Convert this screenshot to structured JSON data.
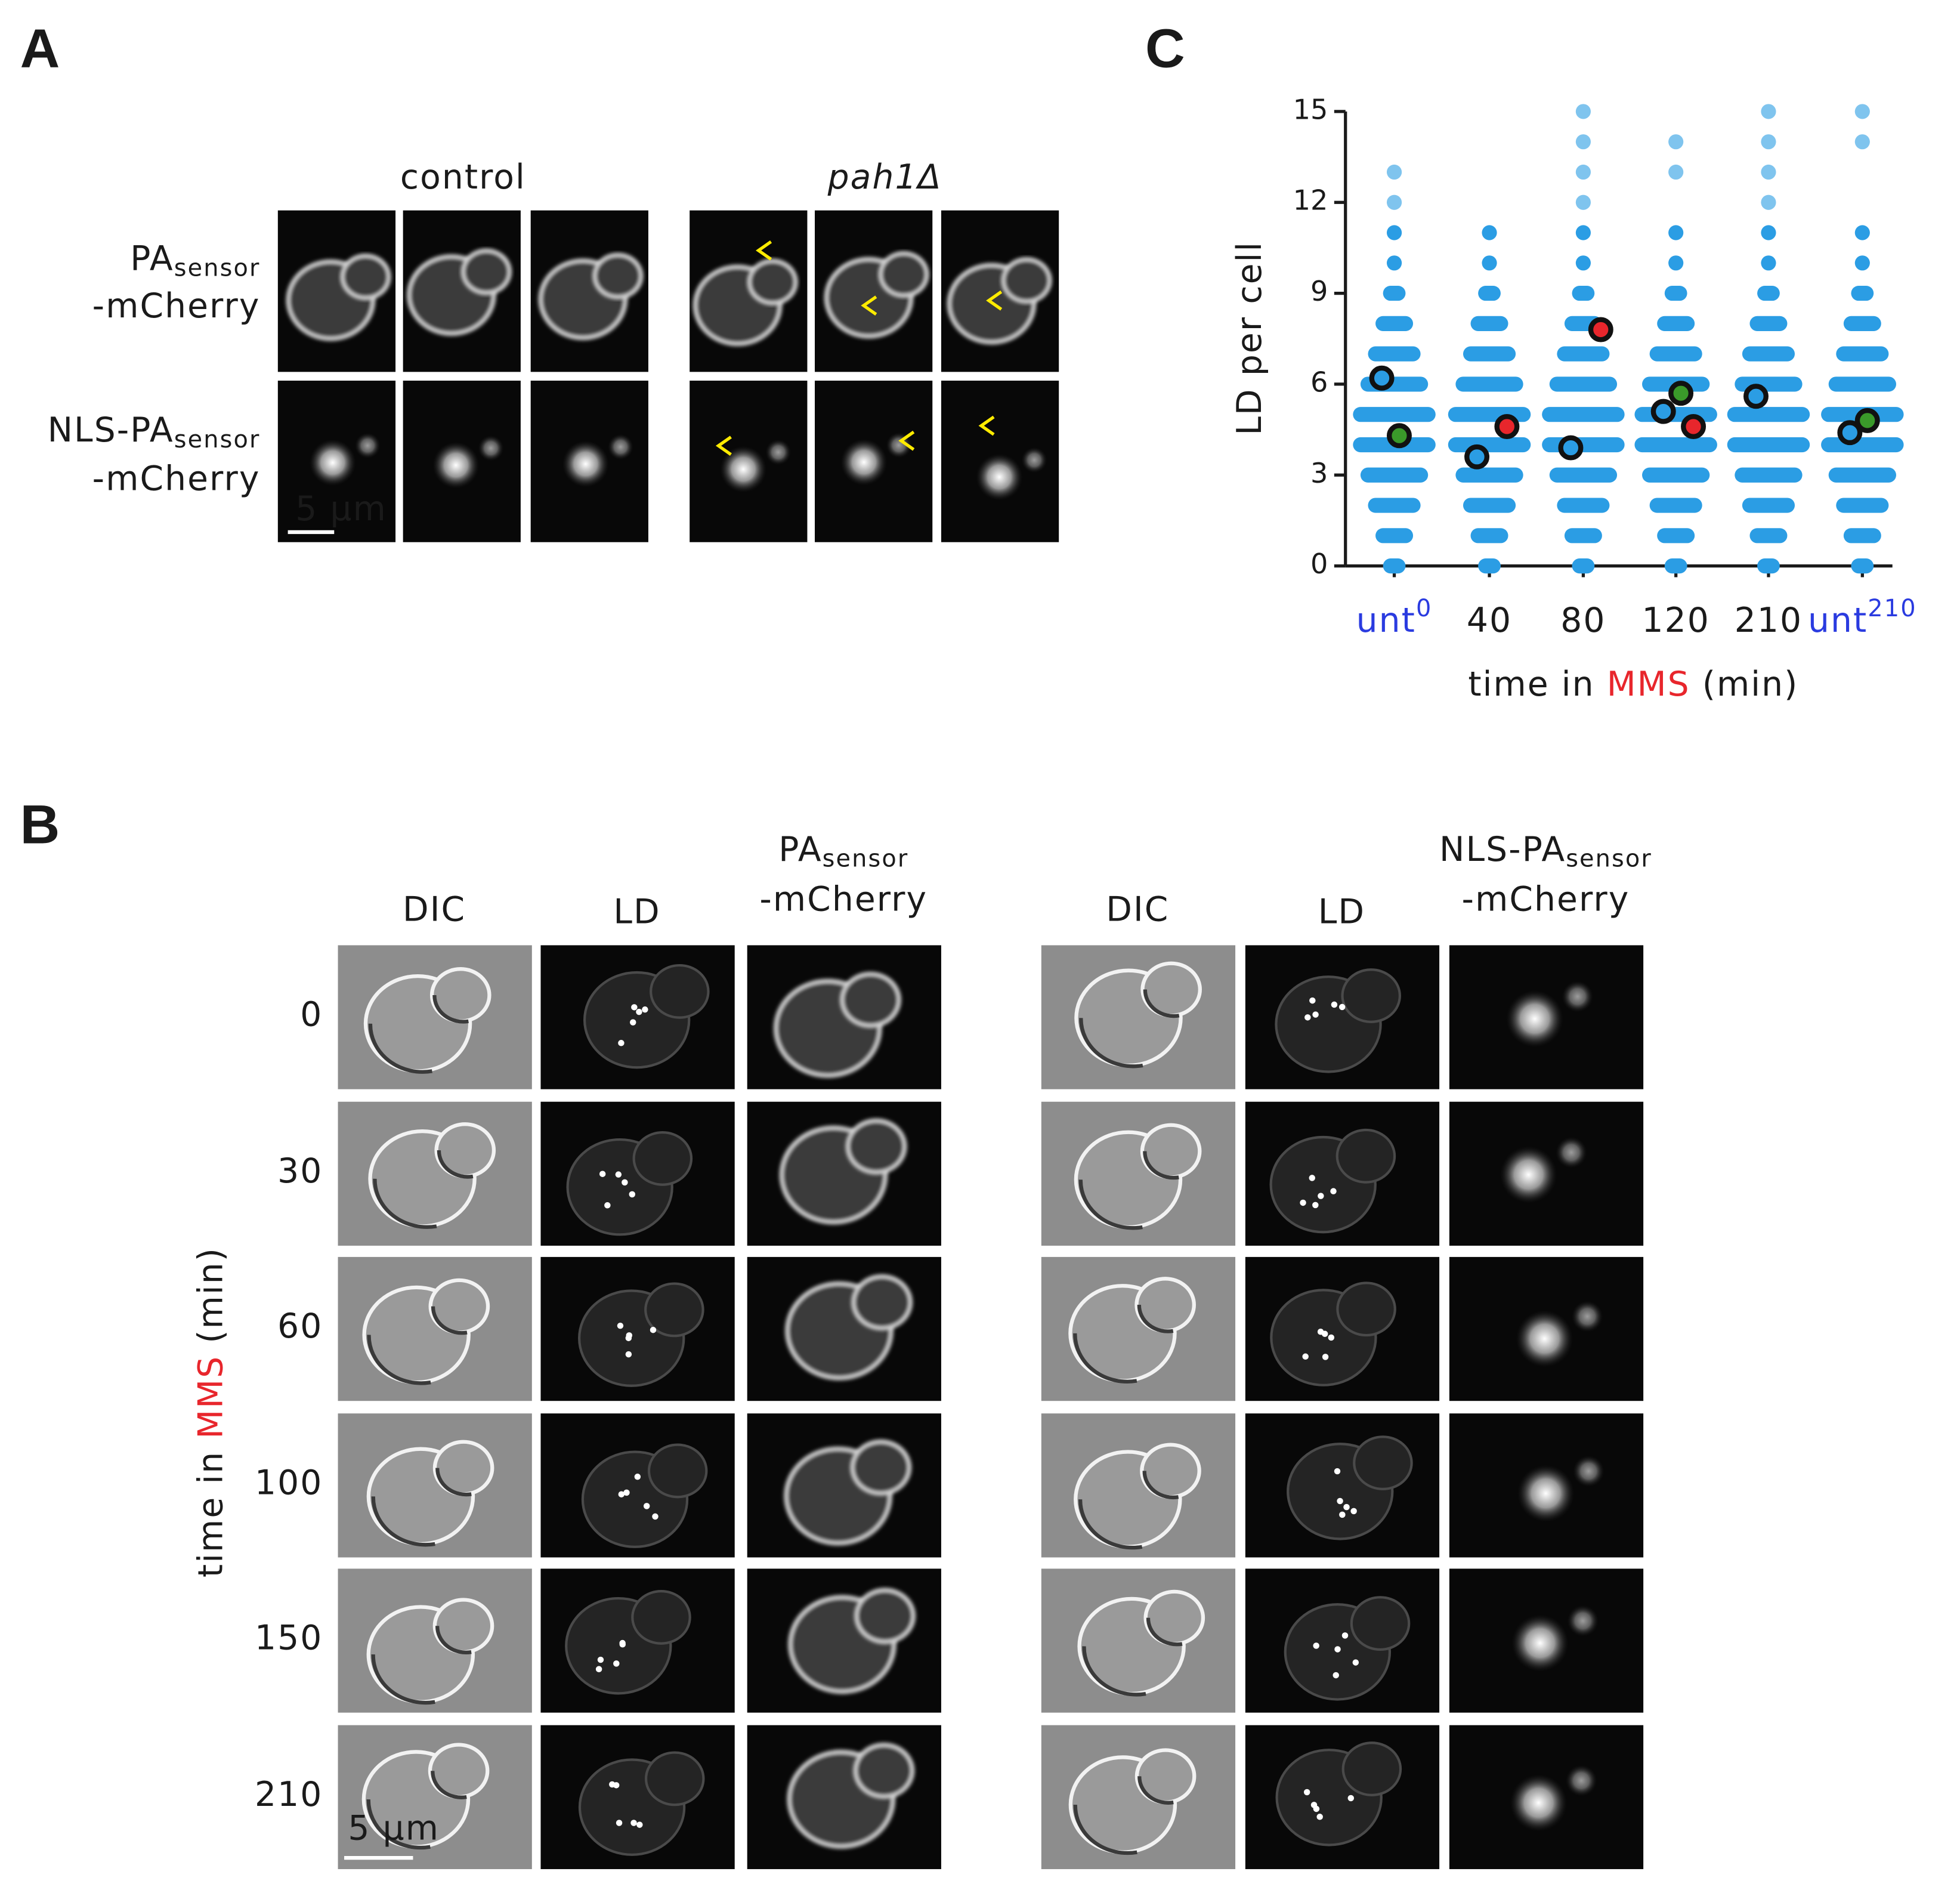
{
  "panel_labels": [
    "A",
    "B",
    "C"
  ],
  "panel_a": {
    "column_groups": [
      "control",
      "pah1Δ"
    ],
    "rows": [
      {
        "name": "PA",
        "subscript": "sensor",
        "suffix": "-mCherry"
      },
      {
        "name": "NLS-PA",
        "subscript": "sensor",
        "suffix": "-mCherry"
      }
    ],
    "scale_bar": "5 µm"
  },
  "panel_b": {
    "groups": [
      {
        "dic": "DIC",
        "ld": "LD",
        "sensor": {
          "name": "PA",
          "subscript": "sensor",
          "suffix": "-mCherry"
        }
      },
      {
        "dic": "DIC",
        "ld": "LD",
        "sensor": {
          "name": "NLS-PA",
          "subscript": "sensor",
          "suffix": "-mCherry"
        }
      }
    ],
    "times": [
      0,
      30,
      60,
      100,
      150,
      210
    ],
    "y_label": [
      "time in ",
      "MMS",
      " (min)"
    ],
    "scale_bar": "5 µm"
  },
  "chart_data": {
    "type": "strip",
    "y_label": "LD per cell",
    "categories": [
      "unt",
      "40",
      "80",
      "120",
      "210",
      "unt"
    ],
    "category_superscripts": [
      "0",
      null,
      null,
      null,
      null,
      "210"
    ],
    "category_colors": [
      "#2a3be0",
      "#1a1a1a",
      "#1a1a1a",
      "#1a1a1a",
      "#1a1a1a",
      "#2a3be0"
    ],
    "x_label": [
      "time in ",
      "MMS",
      " (min)"
    ],
    "x_label_colors": [
      "#1a1a1a",
      "#e8262c",
      "#1a1a1a"
    ],
    "ylim": [
      0,
      15
    ],
    "yticks": [
      0,
      3,
      6,
      9,
      12,
      15
    ],
    "cells": {
      "color": "#2b9de4",
      "values": [
        [
          0,
          1,
          2,
          3,
          4,
          5,
          6,
          7,
          8,
          9,
          10,
          11,
          12,
          13
        ],
        [
          0,
          1,
          2,
          3,
          4,
          5,
          6,
          7,
          8,
          9,
          10,
          11
        ],
        [
          0,
          1,
          2,
          3,
          4,
          5,
          6,
          7,
          8,
          9,
          10,
          11,
          12,
          13,
          14,
          15
        ],
        [
          0,
          1,
          2,
          3,
          4,
          5,
          6,
          7,
          8,
          9,
          10,
          11,
          13,
          14
        ],
        [
          0,
          1,
          2,
          3,
          4,
          5,
          6,
          7,
          8,
          9,
          10,
          11,
          12,
          13,
          14,
          15
        ],
        [
          0,
          1,
          2,
          3,
          4,
          5,
          6,
          7,
          8,
          9,
          10,
          11,
          14,
          15
        ]
      ]
    },
    "series": [
      {
        "color": "#2b9de4",
        "values": [
          6.2,
          3.6,
          3.9,
          5.1,
          5.6,
          4.4
        ]
      },
      {
        "color": "#3a9a2a",
        "values": [
          4.3,
          null,
          null,
          5.7,
          null,
          4.8
        ]
      },
      {
        "color": "#e8262c",
        "values": [
          null,
          4.6,
          7.8,
          4.6,
          null,
          null
        ]
      }
    ]
  }
}
